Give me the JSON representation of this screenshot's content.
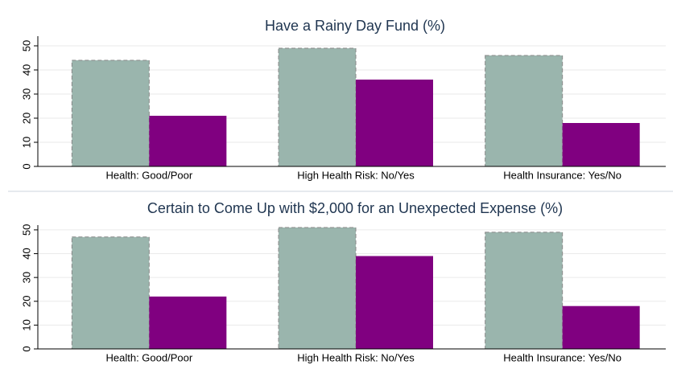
{
  "chart_data": [
    {
      "type": "bar",
      "title": "Have a Rainy Day Fund (%)",
      "categories": [
        "Health: Good/Poor",
        "High Health Risk: No/Yes",
        "Health Insurance: Yes/No"
      ],
      "series": [
        {
          "color": "#9ab5ad",
          "values": [
            44,
            49,
            46
          ]
        },
        {
          "color": "#800080",
          "values": [
            21,
            36,
            18
          ]
        }
      ],
      "ylim": [
        0,
        54
      ],
      "yticks": [
        0,
        10,
        20,
        30,
        40,
        50
      ],
      "grid": true
    },
    {
      "type": "bar",
      "title": "Certain to Come Up with $2,000 for an Unexpected Expense (%)",
      "categories": [
        "Health: Good/Poor",
        "High Health Risk: No/Yes",
        "Health Insurance: Yes/No"
      ],
      "series": [
        {
          "color": "#9ab5ad",
          "values": [
            47,
            51,
            49
          ]
        },
        {
          "color": "#800080",
          "values": [
            22,
            39,
            18
          ]
        }
      ],
      "ylim": [
        0,
        52
      ],
      "yticks": [
        0,
        10,
        20,
        30,
        40,
        50
      ],
      "grid": true
    }
  ]
}
